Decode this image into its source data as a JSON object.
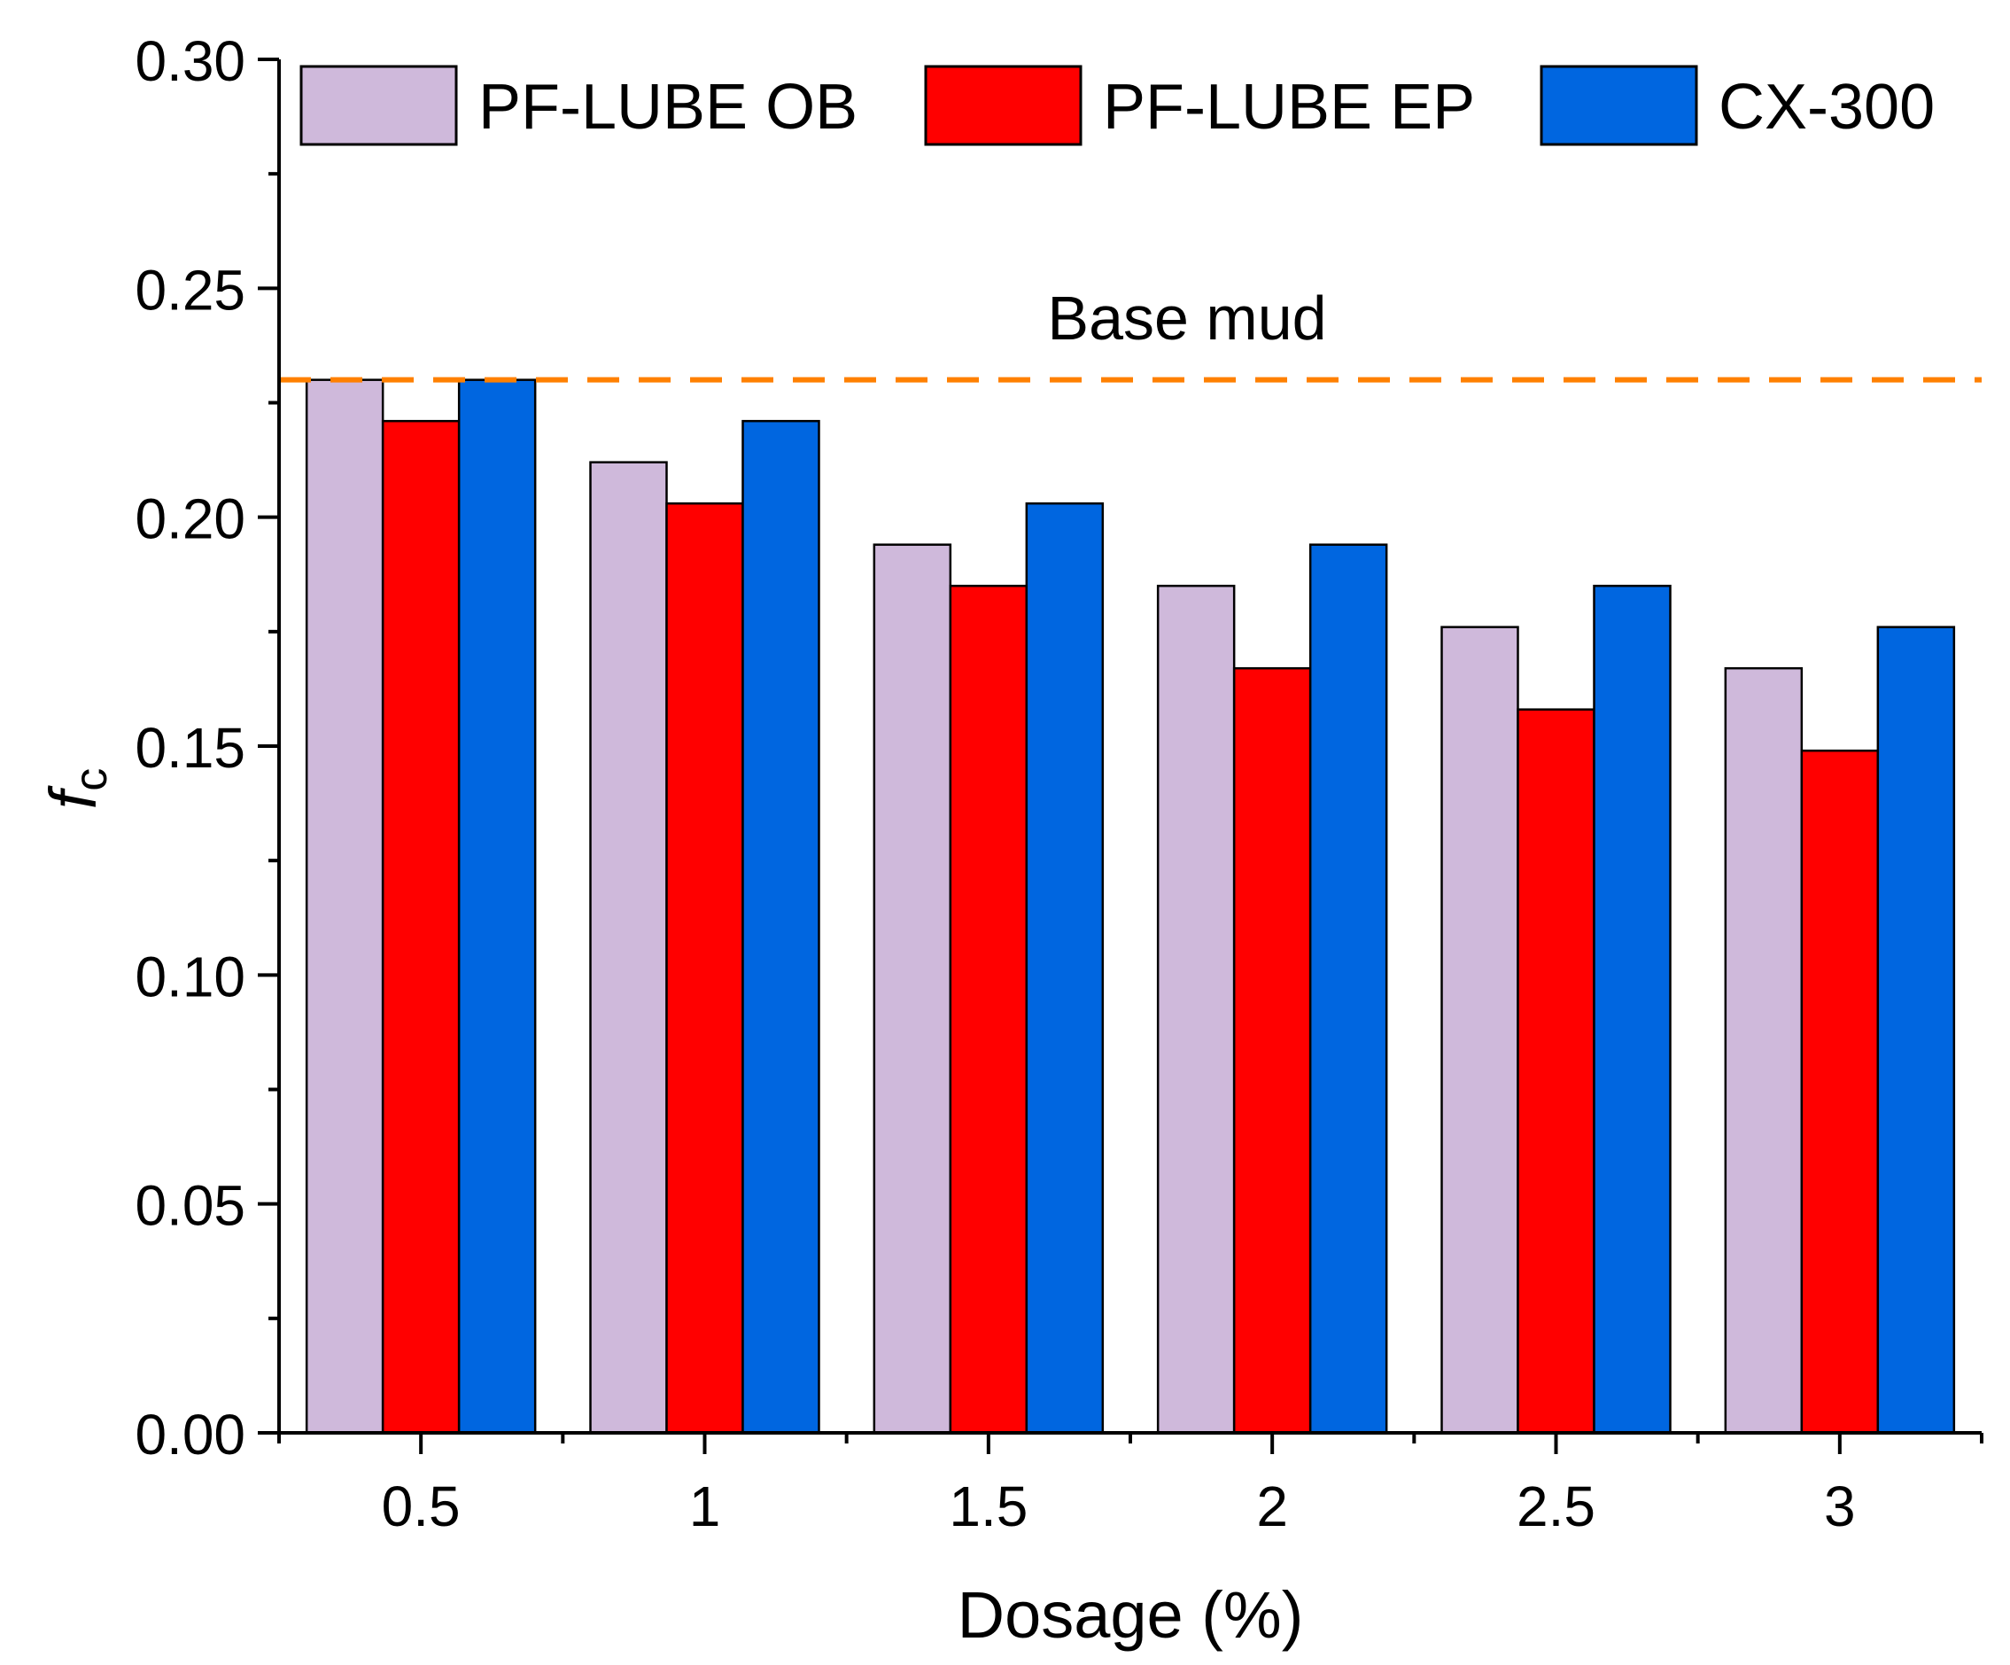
{
  "chart_data": {
    "type": "bar",
    "title": "",
    "xlabel": "Dosage (%)",
    "ylabel_main": "f",
    "ylabel_sub": "c",
    "categories": [
      "0.5",
      "1",
      "1.5",
      "2",
      "2.5",
      "3"
    ],
    "series": [
      {
        "name": "PF-LUBE OB",
        "color": "#cfb9db",
        "values": [
          0.23,
          0.212,
          0.194,
          0.185,
          0.176,
          0.167
        ]
      },
      {
        "name": "PF-LUBE EP",
        "color": "#ff0000",
        "values": [
          0.221,
          0.203,
          0.185,
          0.167,
          0.158,
          0.149
        ]
      },
      {
        "name": "CX-300",
        "color": "#0066e0",
        "values": [
          0.23,
          0.221,
          0.203,
          0.194,
          0.185,
          0.176
        ]
      }
    ],
    "reference_line": {
      "label": "Base mud",
      "value": 0.23,
      "color": "#ff8000"
    },
    "ylim": [
      0,
      0.3
    ],
    "yticks": [
      "0.00",
      "0.05",
      "0.10",
      "0.15",
      "0.20",
      "0.25",
      "0.30"
    ],
    "legend_position": "top",
    "grid": false
  }
}
